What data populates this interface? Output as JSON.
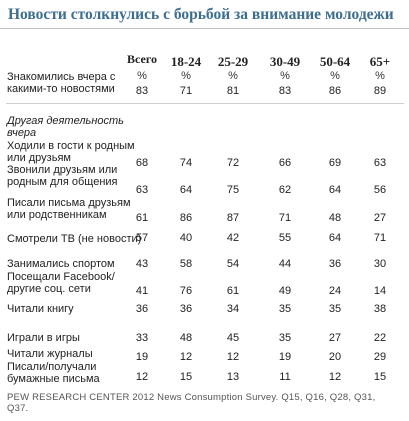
{
  "chart_data": {
    "type": "table",
    "title": "Новости столкнулись с борьбой за внимание молодежи",
    "columns": [
      "Всего",
      "18-24",
      "25-29",
      "30-49",
      "50-64",
      "65+"
    ],
    "percent_symbol": "%",
    "top_row": {
      "label": [
        "Знакомились вчера с",
        "какими-то новостями"
      ],
      "values": [
        83,
        71,
        81,
        83,
        86,
        89
      ]
    },
    "section_label": [
      "Другая деятельность",
      "вчера"
    ],
    "rows": [
      {
        "label": [
          "Ходили в гости к родным",
          "или друзьям"
        ],
        "values": [
          68,
          74,
          72,
          66,
          69,
          63
        ]
      },
      {
        "label": [
          "Звонили друзьям или",
          "родным для общения"
        ],
        "values": [
          63,
          64,
          75,
          62,
          64,
          56
        ]
      },
      {
        "label": [
          "Писали письма друзьям",
          "или родственникам"
        ],
        "values": [
          61,
          86,
          87,
          71,
          48,
          27
        ]
      },
      {
        "label": [
          "Смотрели ТВ (не новости)"
        ],
        "values": [
          57,
          40,
          42,
          55,
          64,
          71
        ]
      },
      {
        "label": [
          "Занимались спортом"
        ],
        "values": [
          43,
          58,
          54,
          44,
          36,
          30
        ]
      },
      {
        "label": [
          "Посещали Facebook/",
          "другие соц. сети"
        ],
        "values": [
          41,
          76,
          61,
          49,
          24,
          14
        ]
      },
      {
        "label": [
          "Читали книгу"
        ],
        "values": [
          36,
          36,
          34,
          35,
          35,
          38
        ]
      },
      {
        "label": [
          "Играли в игры"
        ],
        "values": [
          33,
          48,
          45,
          35,
          27,
          22
        ]
      },
      {
        "label": [
          "Читали журналы"
        ],
        "values": [
          19,
          12,
          12,
          19,
          20,
          29
        ]
      },
      {
        "label": [
          "Писали/получали",
          "бумажные письма"
        ],
        "values": [
          12,
          15,
          13,
          11,
          12,
          15
        ]
      }
    ],
    "footer": [
      "PEW RESEARCH CENTER 2012 News Consumption Survey. Q15, Q16, Q28, Q31,",
      "Q37."
    ]
  }
}
